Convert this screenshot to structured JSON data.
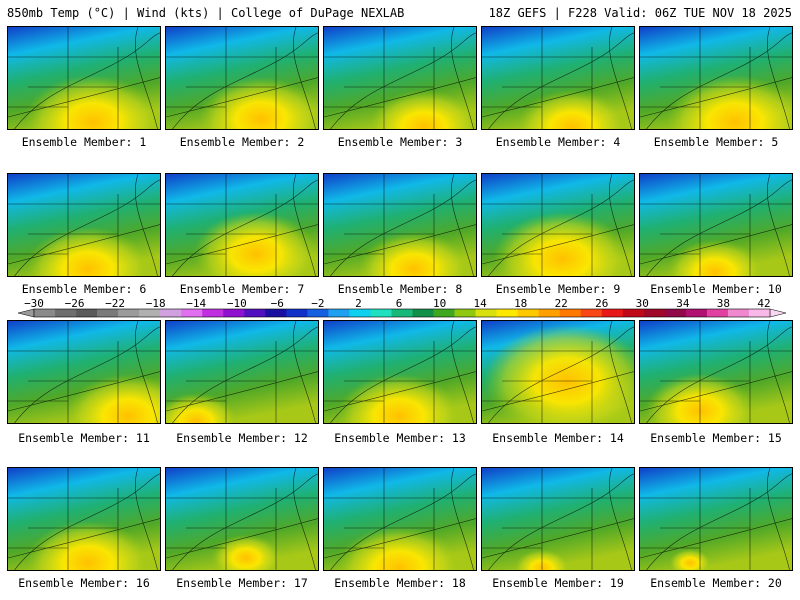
{
  "header": {
    "left": "850mb Temp (°C) | Wind (kts) | College of DuPage NEXLAB",
    "right": "18Z GEFS | F228 Valid: 06Z TUE NOV 18 2025"
  },
  "panel_label_prefix": "Ensemble Member:",
  "panels": [
    {
      "member": 1,
      "label": "Ensemble Member: 1"
    },
    {
      "member": 2,
      "label": "Ensemble Member: 2"
    },
    {
      "member": 3,
      "label": "Ensemble Member: 3"
    },
    {
      "member": 4,
      "label": "Ensemble Member: 4"
    },
    {
      "member": 5,
      "label": "Ensemble Member: 5"
    },
    {
      "member": 6,
      "label": "Ensemble Member: 6"
    },
    {
      "member": 7,
      "label": "Ensemble Member: 7"
    },
    {
      "member": 8,
      "label": "Ensemble Member: 8"
    },
    {
      "member": 9,
      "label": "Ensemble Member: 9"
    },
    {
      "member": 10,
      "label": "Ensemble Member: 10"
    },
    {
      "member": 11,
      "label": "Ensemble Member: 11"
    },
    {
      "member": 12,
      "label": "Ensemble Member: 12"
    },
    {
      "member": 13,
      "label": "Ensemble Member: 13"
    },
    {
      "member": 14,
      "label": "Ensemble Member: 14"
    },
    {
      "member": 15,
      "label": "Ensemble Member: 15"
    },
    {
      "member": 16,
      "label": "Ensemble Member: 16"
    },
    {
      "member": 17,
      "label": "Ensemble Member: 17"
    },
    {
      "member": 18,
      "label": "Ensemble Member: 18"
    },
    {
      "member": 19,
      "label": "Ensemble Member: 19"
    },
    {
      "member": 20,
      "label": "Ensemble Member: 20"
    }
  ],
  "colorbar": {
    "tick_labels": [
      "-30",
      "-26",
      "-22",
      "-18",
      "-14",
      "-10",
      "-6",
      "-2",
      "2",
      "6",
      "10",
      "14",
      "18",
      "22",
      "26",
      "30",
      "34",
      "38",
      "42"
    ],
    "colors": [
      "#8a8a8a",
      "#6e6e6e",
      "#5a5a5a",
      "#7a7a7a",
      "#9a9a9a",
      "#b0b0b0",
      "#d0a0e0",
      "#e070f0",
      "#c030e0",
      "#9010d0",
      "#5010c0",
      "#1a10a0",
      "#1030c8",
      "#1560e0",
      "#20a0f0",
      "#10d0f0",
      "#20e0c0",
      "#18b878",
      "#109048",
      "#40a820",
      "#90c810",
      "#d8e010",
      "#ffe800",
      "#ffc800",
      "#ffa000",
      "#ff7800",
      "#f84818",
      "#e81818",
      "#c00818",
      "#a00828",
      "#900848",
      "#b01070",
      "#e040a0",
      "#f088d0",
      "#f8b8e8"
    ]
  }
}
